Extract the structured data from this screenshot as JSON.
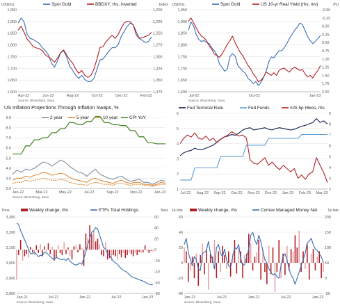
{
  "colors": {
    "blue": "#3a6db5",
    "red": "#b01e24",
    "navy": "#0f1f4b",
    "lightblue": "#5a9bd5",
    "gray": "#7f8c9c",
    "orange": "#e08b3c",
    "green": "#4f8a2c",
    "pink": "#e8a0a6"
  },
  "chart_data": [
    {
      "type": "line",
      "panel": 1,
      "source": "Source: Bloomberg, Saxo",
      "left_unit": "USD/oz.",
      "right_unit": "Index",
      "x_ticks": [
        "Apr-22",
        "Jun-22",
        "Aug-22",
        "Oct-22",
        "Dec-22",
        "Feb-23"
      ],
      "ylim_left": [
        1600,
        2000
      ],
      "yticks_left": [
        "1,950",
        "1,900",
        "1,850",
        "1,800",
        "1,750",
        "1,700",
        "1,650",
        "1,600"
      ],
      "ylim_right": [
        1200,
        1400
      ],
      "right_inverted": true,
      "yticks_right": [
        "1,200",
        "1,225",
        "1,250",
        "1,275",
        "1,300",
        "1,325",
        "1,350",
        "1,375"
      ],
      "series": [
        {
          "name": "Spot Gold",
          "axis": "left",
          "values": [
            1935,
            1960,
            1940,
            1880,
            1860,
            1855,
            1845,
            1835,
            1815,
            1800,
            1780,
            1740,
            1720,
            1750,
            1790,
            1800,
            1770,
            1725,
            1705,
            1680,
            1665,
            1680,
            1660,
            1650,
            1650,
            1665,
            1710,
            1755,
            1760,
            1780,
            1800,
            1815,
            1815,
            1830,
            1870,
            1895,
            1920,
            1935,
            1925,
            1890,
            1860,
            1850,
            1840,
            1845,
            1868
          ]
        },
        {
          "name": "BBDXY, rhs, inverted",
          "axis": "right",
          "values": [
            1250,
            1240,
            1255,
            1272,
            1280,
            1290,
            1293,
            1295,
            1300,
            1310,
            1315,
            1320,
            1328,
            1318,
            1305,
            1298,
            1310,
            1322,
            1330,
            1345,
            1355,
            1348,
            1360,
            1365,
            1360,
            1345,
            1320,
            1292,
            1290,
            1278,
            1270,
            1262,
            1270,
            1260,
            1245,
            1232,
            1228,
            1230,
            1238,
            1262,
            1270,
            1268,
            1265,
            1262,
            1255
          ]
        }
      ]
    },
    {
      "type": "line",
      "panel": 2,
      "source": "Source: Bloomberg, Saxo",
      "left_unit": "USD/oz.",
      "right_unit": "Pct",
      "x_ticks": [
        "Jul-22",
        "Oct-22",
        "Jan-23"
      ],
      "ylim_left": [
        1600,
        2000
      ],
      "yticks_left": [
        "1,950",
        "1,900",
        "1,850",
        "1,800",
        "1,750",
        "1,700",
        "1,650",
        "1,600"
      ],
      "ylim_right": [
        -0.5,
        2.0
      ],
      "right_inverted": true,
      "yticks_right": [
        "-0.50",
        "-0.25",
        "0.00",
        "0.25",
        "0.50",
        "0.75",
        "1.00",
        "1.25",
        "1.50",
        "1.75",
        "2.00"
      ],
      "series": [
        {
          "name": "Spot Gold",
          "axis": "left",
          "values": [
            1900,
            1940,
            1920,
            1880,
            1855,
            1845,
            1850,
            1840,
            1835,
            1815,
            1800,
            1780,
            1735,
            1720,
            1700,
            1710,
            1770,
            1785,
            1775,
            1730,
            1715,
            1700,
            1690,
            1665,
            1655,
            1640,
            1650,
            1630,
            1645,
            1670,
            1700,
            1745,
            1770,
            1765,
            1785,
            1800,
            1800,
            1815,
            1835,
            1860,
            1880,
            1900,
            1915,
            1935,
            1928,
            1900,
            1870,
            1850,
            1835,
            1845,
            1860,
            1875
          ]
        },
        {
          "name": "US 10-yr Real Yield (rhs, inv)",
          "axis": "right",
          "values": [
            -0.15,
            -0.25,
            -0.1,
            0.05,
            0.2,
            0.3,
            0.35,
            0.45,
            0.6,
            0.7,
            0.85,
            0.9,
            0.95,
            0.85,
            0.7,
            0.55,
            0.45,
            0.3,
            0.5,
            0.65,
            0.8,
            0.9,
            1.05,
            1.2,
            1.3,
            1.45,
            1.55,
            1.7,
            1.65,
            1.55,
            1.4,
            1.45,
            1.5,
            1.42,
            1.5,
            1.35,
            1.3,
            1.28,
            1.35,
            1.4,
            1.3,
            1.25,
            1.3,
            1.35,
            1.32,
            1.45,
            1.55,
            1.5,
            1.58,
            1.45,
            1.35,
            1.2
          ]
        }
      ]
    },
    {
      "type": "line",
      "panel": 3,
      "title": "US Inflation Projections Through Inflation Swaps, %",
      "source": "Source: Bloomberg, Saxo",
      "x_ticks": [
        "Jan-22",
        "Mar-22",
        "May-22",
        "Jul-22",
        "Sep-22",
        "Nov-22",
        "Jan-23"
      ],
      "ylim_left": [
        2.0,
        9.0
      ],
      "yticks_left": [
        "9.0",
        "8.0",
        "7.0",
        "6.0",
        "5.0",
        "4.0",
        "3.0",
        "2.0"
      ],
      "series": [
        {
          "name": "2 year",
          "axis": "left",
          "values": [
            3.4,
            3.8,
            3.6,
            3.9,
            3.8,
            4.0,
            4.3,
            4.6,
            4.5,
            4.2,
            4.5,
            4.8,
            4.6,
            4.2,
            3.9,
            3.6,
            3.5,
            3.2,
            3.6,
            3.9,
            3.4,
            3.2,
            3.0,
            2.9,
            3.1,
            3.2,
            2.9,
            2.7,
            2.8,
            2.9,
            2.6,
            2.6,
            2.4,
            2.6,
            2.8,
            2.7
          ]
        },
        {
          "name": "5 year",
          "axis": "left",
          "values": [
            2.8,
            3.0,
            3.0,
            3.2,
            3.1,
            3.3,
            3.4,
            3.6,
            3.5,
            3.3,
            3.4,
            3.5,
            3.4,
            3.1,
            2.9,
            2.8,
            2.7,
            2.6,
            2.9,
            3.0,
            2.8,
            2.7,
            2.6,
            2.5,
            2.7,
            2.8,
            2.6,
            2.5,
            2.6,
            2.6,
            2.4,
            2.4,
            2.3,
            2.4,
            2.6,
            2.5
          ]
        },
        {
          "name": "10 year",
          "axis": "left",
          "values": [
            2.5,
            2.6,
            2.6,
            2.8,
            2.7,
            2.8,
            2.9,
            3.0,
            2.9,
            2.8,
            2.8,
            2.9,
            2.8,
            2.6,
            2.5,
            2.4,
            2.4,
            2.3,
            2.5,
            2.6,
            2.5,
            2.4,
            2.4,
            2.3,
            2.5,
            2.5,
            2.4,
            2.3,
            2.4,
            2.4,
            2.3,
            2.3,
            2.2,
            2.3,
            2.4,
            2.4
          ]
        },
        {
          "name": "CPI YoY",
          "axis": "left",
          "values": [
            5.4,
            5.4,
            5.4,
            6.2,
            6.2,
            6.8,
            6.8,
            7.0,
            7.0,
            7.5,
            7.5,
            7.9,
            7.9,
            8.5,
            8.5,
            8.3,
            8.3,
            8.6,
            8.6,
            9.1,
            9.1,
            8.5,
            8.5,
            8.3,
            8.3,
            8.2,
            8.2,
            7.7,
            7.7,
            7.1,
            7.1,
            6.5,
            6.5,
            6.4,
            6.4,
            6.4
          ]
        }
      ]
    },
    {
      "type": "line",
      "panel": 4,
      "x_ticks": [
        "Jul-22",
        "Aug-22",
        "Sep-22",
        "Oct-22",
        "Nov-22",
        "Dec-22",
        "Jan-23",
        "Feb-23",
        "Mar-23"
      ],
      "ylim_left": [
        1,
        6
      ],
      "yticks_left": [
        "6",
        "5",
        "4",
        "3",
        "2",
        "1"
      ],
      "ylim_right": [
        2,
        9
      ],
      "yticks_right": [
        "9",
        "8",
        "7",
        "6",
        "5",
        "4",
        "3",
        "2"
      ],
      "series": [
        {
          "name": "Fed Terminal Rate",
          "axis": "left",
          "values": [
            3.2,
            3.4,
            3.5,
            3.55,
            3.7,
            3.6,
            3.6,
            3.7,
            3.8,
            3.9,
            4.1,
            4.3,
            4.45,
            4.5,
            4.6,
            4.55,
            4.7,
            4.9,
            5.0,
            5.05,
            4.9,
            4.95,
            5.0,
            5.05,
            4.95,
            4.9,
            5.0,
            5.05,
            5.0,
            4.95,
            4.9,
            4.95,
            5.05,
            5.15,
            5.2,
            5.3,
            5.4,
            5.65,
            5.4,
            5.5,
            5.3
          ]
        },
        {
          "name": "Fed Funds",
          "axis": "left",
          "values": [
            1.6,
            1.6,
            1.6,
            1.6,
            2.4,
            2.4,
            2.4,
            2.4,
            2.4,
            2.4,
            2.4,
            3.15,
            3.15,
            3.15,
            3.15,
            3.15,
            3.15,
            3.15,
            3.9,
            3.9,
            3.9,
            3.9,
            3.9,
            3.9,
            4.35,
            4.35,
            4.35,
            4.35,
            4.35,
            4.35,
            4.35,
            4.35,
            4.35,
            4.6,
            4.6,
            4.6,
            4.6,
            4.6,
            4.6,
            4.6,
            4.6
          ]
        },
        {
          "name": "#25 bp Hikes, rhs",
          "axis": "right",
          "values": [
            6.2,
            6.7,
            7.0,
            6.8,
            7.2,
            6.7,
            6.6,
            6.9,
            6.5,
            6.7,
            6.3,
            6.6,
            6.8,
            7.0,
            7.3,
            7.1,
            6.9,
            7.0,
            6.7,
            4.7,
            4.4,
            4.3,
            4.6,
            4.9,
            4.2,
            4.5,
            4.1,
            3.8,
            4.2,
            3.9,
            3.6,
            3.9,
            3.0,
            3.3,
            2.9,
            3.4,
            3.6,
            4.9,
            4.2,
            3.5,
            2.6
          ]
        }
      ]
    },
    {
      "type": "bar",
      "panel": 5,
      "source": "Source: Bloomberg, Saxo",
      "left_unit": "Tons",
      "right_unit": "Tons",
      "x_ticks": [
        "Jan-21",
        "Jul-21",
        "Jan-22",
        "Jul-22",
        "Jan-23"
      ],
      "ylim_left": [
        2800,
        3300
      ],
      "yticks_left": [
        "3,300",
        "3,200",
        "3,100",
        "3,000",
        "2,900",
        "2,800"
      ],
      "ylim_right": [
        -80,
        60
      ],
      "yticks_right": [
        "60",
        "40",
        "20",
        "0",
        "-20",
        "-40",
        "-60",
        "-80"
      ],
      "series": [
        {
          "name": "Weekly change, rhs",
          "axis": "right",
          "values": [
            -55,
            -10,
            18,
            -20,
            -12,
            -8,
            -15,
            5,
            -5,
            -10,
            8,
            -6,
            10,
            -12,
            6,
            -4,
            12,
            -8,
            5,
            -20,
            -15,
            9,
            -6,
            -10,
            14,
            -8,
            4,
            -12,
            -18,
            6,
            8,
            -5,
            10,
            3,
            -30,
            30,
            22,
            45,
            28,
            35,
            15,
            20,
            10,
            -10,
            -12,
            14,
            -18,
            -15,
            -20,
            -10,
            -12,
            -18,
            -8,
            -14,
            -6,
            -15,
            -10,
            -5,
            -8,
            -12,
            -6,
            -10,
            -4,
            -6,
            -5,
            8,
            -4,
            -6,
            -2,
            -3
          ]
        },
        {
          "name": "ETFs Total Holdings",
          "axis": "left",
          "values": [
            3260,
            3250,
            3210,
            3180,
            3150,
            3120,
            3090,
            3060,
            3060,
            3070,
            3055,
            3040,
            3050,
            3045,
            3070,
            3065,
            3055,
            3040,
            3030,
            3020,
            3035,
            3030,
            3025,
            3020,
            3025,
            3015,
            3030,
            3010,
            3000,
            2990,
            2985,
            2990,
            3000,
            2990,
            3030,
            3070,
            3120,
            3160,
            3200,
            3210,
            3230,
            3220,
            3180,
            3140,
            3100,
            3090,
            3060,
            3050,
            3030,
            3010,
            3000,
            2990,
            2975,
            2960,
            2950,
            2945,
            2935,
            2925,
            2910,
            2905,
            2900,
            2895,
            2890,
            2885,
            2880,
            2875,
            2865,
            2860,
            2855,
            2860
          ]
        }
      ]
    },
    {
      "type": "bar",
      "panel": 6,
      "source": "Source: Bloomberg, Saxo",
      "left_unit": "1k lots",
      "right_unit": "1k lots",
      "x_ticks": [
        "Jan-21",
        "Jul-21",
        "Jan-22",
        "Jul-22",
        "Jan-23"
      ],
      "ylim_left": [
        -40,
        60
      ],
      "yticks_left": [
        "60",
        "40",
        "20",
        "0",
        "-20",
        "-40"
      ],
      "ylim_right": [
        -50,
        200
      ],
      "yticks_right": [
        "200",
        "150",
        "100",
        "50",
        "0",
        "-50"
      ],
      "series": [
        {
          "name": "Weekly change, rhs",
          "axis": "left",
          "values": [
            20,
            15,
            -25,
            -10,
            8,
            -20,
            12,
            -30,
            10,
            25,
            -15,
            18,
            -35,
            12,
            8,
            30,
            -20,
            15,
            -12,
            22,
            10,
            -8,
            15,
            -18,
            12,
            30,
            -14,
            20,
            15,
            -20,
            10,
            12,
            38,
            25,
            -10,
            8,
            14,
            30,
            -22,
            18,
            -12,
            -28,
            22,
            -15,
            20,
            -38,
            -12,
            30,
            -20,
            12,
            -16,
            22,
            -10,
            18,
            15,
            36,
            20,
            42,
            -12,
            15,
            -8,
            25,
            -22,
            12,
            18,
            -10,
            8,
            15,
            -20,
            -12
          ]
        },
        {
          "name": "Comex Managed Money Net",
          "axis": "right",
          "values": [
            110,
            130,
            85,
            60,
            40,
            70,
            60,
            30,
            25,
            80,
            85,
            90,
            120,
            80,
            60,
            30,
            100,
            110,
            80,
            70,
            95,
            60,
            40,
            35,
            70,
            100,
            95,
            110,
            65,
            40,
            45,
            70,
            95,
            140,
            150,
            125,
            110,
            140,
            120,
            90,
            60,
            50,
            30,
            20,
            10,
            15,
            5,
            0,
            40,
            70,
            80,
            60,
            30,
            10,
            0,
            -20,
            0,
            20,
            40,
            60,
            80,
            115,
            120,
            130,
            110,
            95,
            90,
            80,
            70,
            50
          ]
        }
      ]
    }
  ]
}
